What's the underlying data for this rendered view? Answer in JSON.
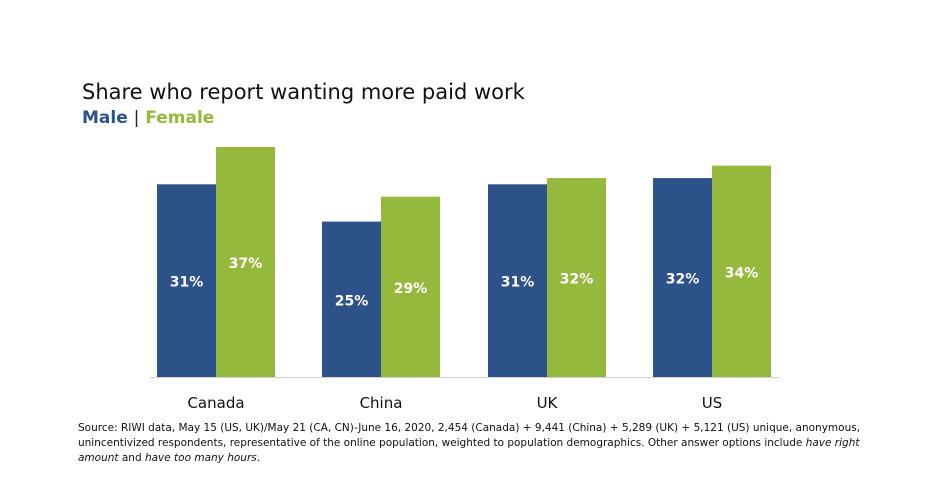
{
  "chart_data": {
    "type": "bar",
    "title": "Share who report wanting more paid work",
    "legend": {
      "male": "Male",
      "separator": "|",
      "female": "Female"
    },
    "categories": [
      "Canada",
      "China",
      "UK",
      "US"
    ],
    "series": [
      {
        "name": "Male",
        "color": "#2d5189",
        "values": [
          31,
          25,
          31,
          32
        ],
        "labels": [
          "31%",
          "25%",
          "31%",
          "32%"
        ]
      },
      {
        "name": "Female",
        "color": "#95b93d",
        "values": [
          37,
          29,
          32,
          34
        ],
        "labels": [
          "37%",
          "29%",
          "32%",
          "34%"
        ]
      }
    ],
    "ylim": [
      0,
      37
    ],
    "grid": false,
    "legend_placement": "top-left, under title"
  },
  "source": {
    "text_1": "Source: RIWI data, May 15 (US, UK)/May 21 (CA, CN)-June 16, 2020, 2,454 (Canada) + 9,441 (China) + 5,289 (UK) + 5,121 (US) unique, anonymous, unincentivized respondents, representative of the online population, weighted to population demographics. Other answer options include ",
    "italic_1": "have right amount",
    "text_2": " and ",
    "italic_2": "have too many hours",
    "text_3": "."
  }
}
